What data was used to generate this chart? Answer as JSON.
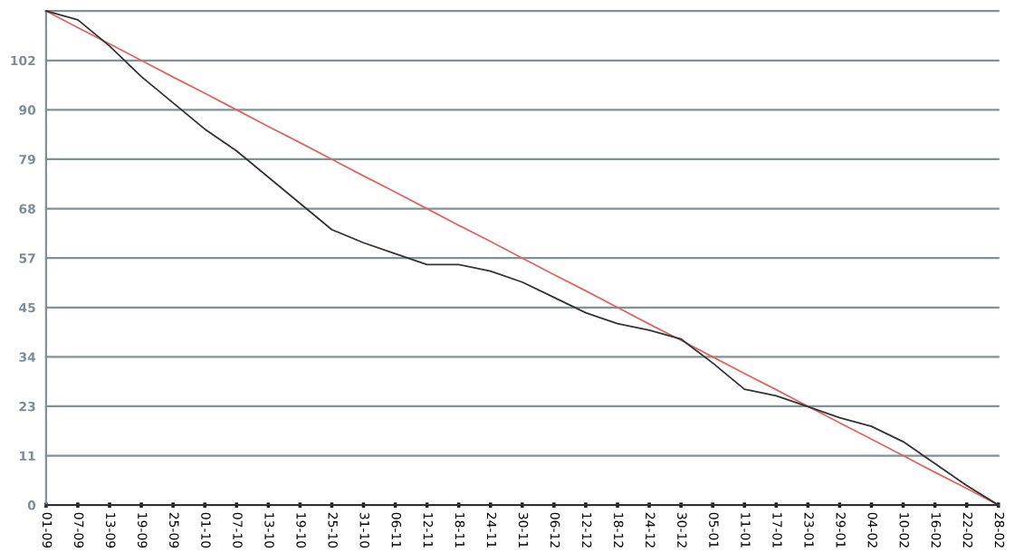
{
  "chart_data": {
    "type": "line",
    "categories": [
      "01-09",
      "07-09",
      "13-09",
      "19-09",
      "25-09",
      "01-10",
      "07-10",
      "13-10",
      "19-10",
      "25-10",
      "31-10",
      "06-11",
      "12-11",
      "18-11",
      "24-11",
      "30-11",
      "06-12",
      "12-12",
      "18-12",
      "24-12",
      "30-12",
      "05-01",
      "11-01",
      "17-01",
      "23-01",
      "29-01",
      "04-02",
      "10-02",
      "16-02",
      "22-02",
      "28-02"
    ],
    "ylim": [
      0,
      113
    ],
    "yticks": [
      0,
      {
        "value": 11.3,
        "label": "11"
      },
      {
        "value": 22.6,
        "label": "23"
      },
      {
        "value": 33.9,
        "label": "34"
      },
      {
        "value": 45.2,
        "label": "45"
      },
      {
        "value": 56.5,
        "label": "57"
      },
      {
        "value": 67.8,
        "label": "68"
      },
      {
        "value": 79.1,
        "label": "79"
      },
      {
        "value": 90.4,
        "label": "90"
      },
      {
        "value": 101.7,
        "label": "102"
      },
      {
        "value": 113,
        "label": null
      }
    ],
    "grid": "y",
    "marker": "none",
    "line_style": "solid",
    "series": [
      {
        "color": "#e06464",
        "values": [
          113,
          109.2,
          105.5,
          101.7,
          97.9,
          94.2,
          90.4,
          86.6,
          82.9,
          79.1,
          75.3,
          71.6,
          67.8,
          64,
          60.3,
          56.5,
          52.7,
          49,
          45.2,
          41.4,
          37.7,
          33.9,
          30.1,
          26.4,
          22.6,
          18.8,
          15.1,
          11.3,
          7.5,
          3.8,
          0
        ]
      },
      {
        "color": "#333333",
        "values": [
          113,
          111,
          105,
          98,
          92,
          86,
          81,
          75,
          69,
          63,
          60,
          57.5,
          55,
          55,
          53.5,
          51,
          47.5,
          44,
          41.5,
          40,
          38,
          32.5,
          26.5,
          25,
          22.5,
          20,
          18,
          14.5,
          9.5,
          4.5,
          0
        ]
      }
    ]
  }
}
